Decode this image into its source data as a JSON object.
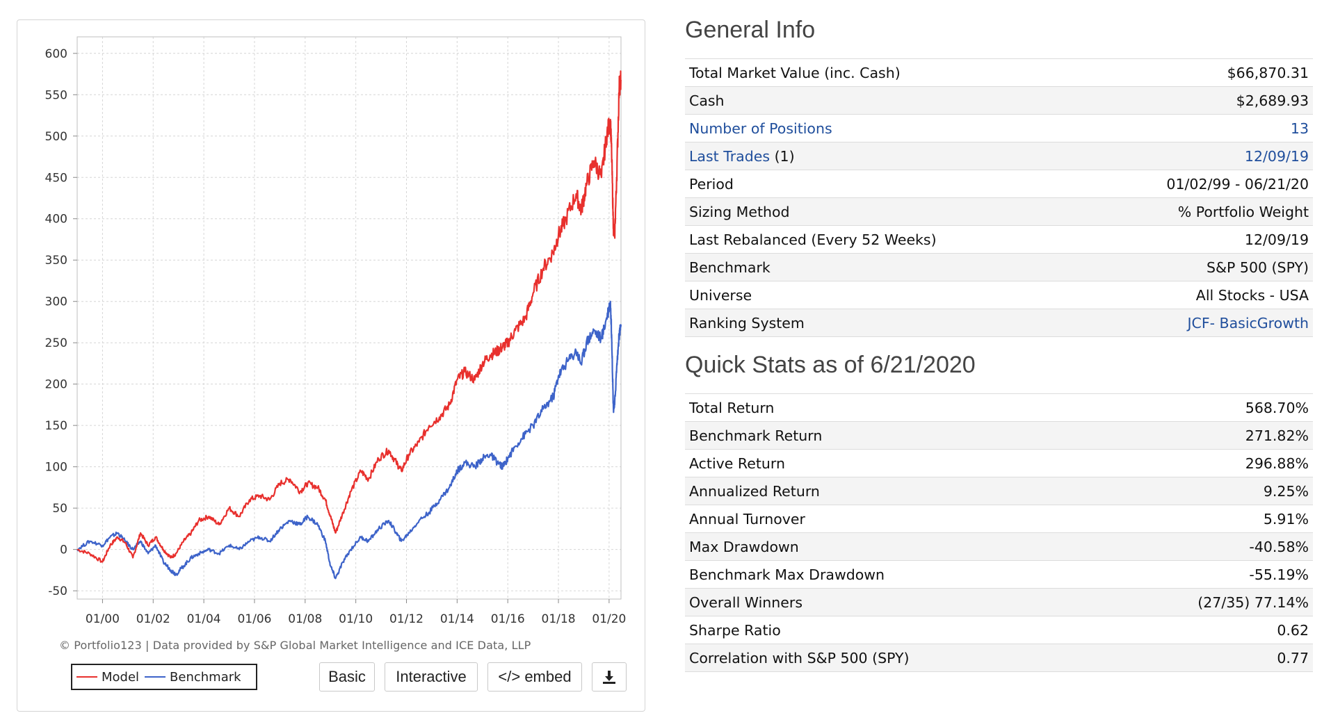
{
  "chart": {
    "y_ticks": [
      "600",
      "550",
      "500",
      "450",
      "400",
      "350",
      "300",
      "250",
      "200",
      "150",
      "100",
      "50",
      "0",
      "-50"
    ],
    "x_ticks": [
      "01/00",
      "01/02",
      "01/04",
      "01/06",
      "01/08",
      "01/10",
      "01/12",
      "01/14",
      "01/16",
      "01/18",
      "01/20"
    ],
    "credit": "© Portfolio123 | Data provided by S&P Global Market Intelligence and ICE Data, LLP",
    "legend": {
      "model_label": "Model",
      "benchmark_label": "Benchmark"
    },
    "colors": {
      "model": "#e8302d",
      "benchmark": "#3d63c9",
      "grid": "#d6d6d6"
    },
    "buttons": {
      "basic": "Basic",
      "interactive": "Interactive",
      "embed": "</> embed"
    },
    "download_icon": "download-icon"
  },
  "chart_data": {
    "type": "line",
    "title": "",
    "xlabel": "",
    "ylabel": "",
    "ylim": [
      -60,
      620
    ],
    "x_range": [
      1999.0,
      2020.47
    ],
    "x_ticks": [
      2000,
      2002,
      2004,
      2006,
      2008,
      2010,
      2012,
      2014,
      2016,
      2018,
      2020
    ],
    "series": [
      {
        "name": "Model",
        "x": [
          1999.0,
          1999.5,
          2000.0,
          2000.3,
          2000.6,
          2000.9,
          2001.2,
          2001.5,
          2001.8,
          2002.1,
          2002.4,
          2002.7,
          2002.9,
          2003.2,
          2003.5,
          2003.8,
          2004.2,
          2004.6,
          2005.0,
          2005.4,
          2005.8,
          2006.2,
          2006.6,
          2007.0,
          2007.4,
          2007.8,
          2008.1,
          2008.5,
          2008.8,
          2009.0,
          2009.2,
          2009.5,
          2009.8,
          2010.2,
          2010.5,
          2010.9,
          2011.3,
          2011.6,
          2011.8,
          2012.1,
          2012.5,
          2012.9,
          2013.3,
          2013.7,
          2014.0,
          2014.3,
          2014.7,
          2015.0,
          2015.3,
          2015.6,
          2015.8,
          2016.0,
          2016.3,
          2016.7,
          2017.0,
          2017.4,
          2017.8,
          2018.0,
          2018.3,
          2018.7,
          2018.9,
          2019.1,
          2019.4,
          2019.7,
          2019.9,
          2020.05,
          2020.1,
          2020.17,
          2020.22,
          2020.3,
          2020.4,
          2020.47
        ],
        "values": [
          0,
          -5,
          -15,
          5,
          15,
          8,
          -10,
          20,
          5,
          15,
          0,
          -10,
          -5,
          10,
          20,
          35,
          40,
          30,
          50,
          40,
          60,
          65,
          60,
          80,
          85,
          70,
          80,
          75,
          60,
          40,
          20,
          45,
          70,
          95,
          85,
          110,
          120,
          105,
          95,
          115,
          130,
          150,
          160,
          175,
          205,
          215,
          205,
          225,
          235,
          240,
          245,
          250,
          265,
          280,
          310,
          340,
          360,
          380,
          400,
          430,
          410,
          440,
          470,
          450,
          500,
          520,
          480,
          390,
          380,
          450,
          560,
          568
        ]
      },
      {
        "name": "Benchmark",
        "x": [
          1999.0,
          1999.5,
          2000.0,
          2000.3,
          2000.6,
          2000.9,
          2001.2,
          2001.5,
          2001.8,
          2002.1,
          2002.4,
          2002.7,
          2002.9,
          2003.2,
          2003.5,
          2003.8,
          2004.2,
          2004.6,
          2005.0,
          2005.4,
          2005.8,
          2006.2,
          2006.6,
          2007.0,
          2007.4,
          2007.8,
          2008.1,
          2008.5,
          2008.8,
          2009.0,
          2009.2,
          2009.5,
          2009.8,
          2010.2,
          2010.5,
          2010.9,
          2011.3,
          2011.6,
          2011.8,
          2012.1,
          2012.5,
          2012.9,
          2013.3,
          2013.7,
          2014.0,
          2014.3,
          2014.7,
          2015.0,
          2015.3,
          2015.6,
          2015.8,
          2016.0,
          2016.3,
          2016.7,
          2017.0,
          2017.4,
          2017.8,
          2018.0,
          2018.3,
          2018.7,
          2018.9,
          2019.1,
          2019.4,
          2019.7,
          2019.9,
          2020.05,
          2020.1,
          2020.17,
          2020.22,
          2020.3,
          2020.4,
          2020.47
        ],
        "values": [
          0,
          10,
          5,
          15,
          20,
          10,
          0,
          10,
          -5,
          5,
          -15,
          -25,
          -30,
          -20,
          -10,
          -5,
          0,
          -5,
          5,
          0,
          10,
          15,
          10,
          25,
          35,
          30,
          40,
          30,
          10,
          -20,
          -35,
          -15,
          0,
          15,
          10,
          25,
          35,
          20,
          10,
          20,
          35,
          45,
          60,
          75,
          95,
          105,
          100,
          110,
          115,
          105,
          100,
          110,
          125,
          140,
          150,
          170,
          185,
          210,
          225,
          240,
          225,
          250,
          265,
          255,
          280,
          300,
          260,
          170,
          175,
          220,
          260,
          272
        ]
      }
    ]
  },
  "general_info": {
    "title": "General Info",
    "rows": [
      {
        "label": "Total Market Value (inc. Cash)",
        "value": "$66,870.31"
      },
      {
        "label": "Cash",
        "value": "$2,689.93"
      },
      {
        "label": "Number of Positions",
        "value": "13"
      },
      {
        "label": "Last Trades",
        "label_suffix": "(1)",
        "value": "12/09/19"
      },
      {
        "label": "Period",
        "value": "01/02/99 - 06/21/20"
      },
      {
        "label": "Sizing Method",
        "value": "% Portfolio Weight"
      },
      {
        "label": "Last Rebalanced (Every 52 Weeks)",
        "value": "12/09/19"
      },
      {
        "label": "Benchmark",
        "value": "S&P 500 (SPY)"
      },
      {
        "label": "Universe",
        "value": "All Stocks - USA"
      },
      {
        "label": "Ranking System",
        "value": "JCF- BasicGrowth"
      }
    ]
  },
  "quick_stats": {
    "title": "Quick Stats as of 6/21/2020",
    "rows": [
      {
        "label": "Total Return",
        "value": "568.70%"
      },
      {
        "label": "Benchmark Return",
        "value": "271.82%"
      },
      {
        "label": "Active Return",
        "value": "296.88%"
      },
      {
        "label": "Annualized Return",
        "value": "9.25%"
      },
      {
        "label": "Annual Turnover",
        "value": "5.91%"
      },
      {
        "label": "Max Drawdown",
        "value": "-40.58%"
      },
      {
        "label": "Benchmark Max Drawdown",
        "value": "-55.19%"
      },
      {
        "label": "Overall Winners",
        "value": "(27/35) 77.14%"
      },
      {
        "label": "Sharpe Ratio",
        "value": "0.62"
      },
      {
        "label": "Correlation with S&P 500 (SPY)",
        "value": "0.77"
      }
    ]
  }
}
